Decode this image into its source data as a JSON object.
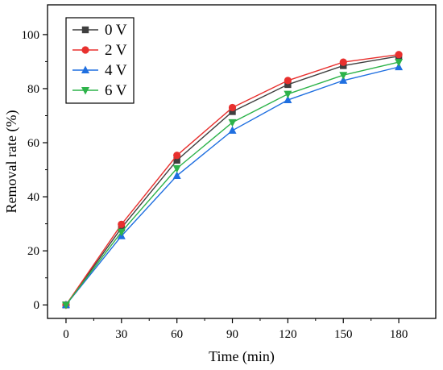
{
  "chart_data": {
    "type": "line",
    "title": "",
    "xlabel": "Time (min)",
    "ylabel": "Removal rate (%)",
    "x": [
      0,
      30,
      60,
      90,
      120,
      150,
      180
    ],
    "x_ticks": [
      "0",
      "30",
      "60",
      "90",
      "120",
      "150",
      "180"
    ],
    "y_ticks": [
      "0",
      "20",
      "40",
      "60",
      "80",
      "100"
    ],
    "xlim": [
      -10,
      200
    ],
    "ylim": [
      -5,
      111
    ],
    "grid": false,
    "legend_position": "top-left",
    "series": [
      {
        "name": "0 V",
        "color": "#3f3f3f",
        "marker": "square",
        "values": [
          0,
          28.5,
          53.5,
          71.5,
          81.5,
          88.5,
          92.0
        ]
      },
      {
        "name": "2 V",
        "color": "#e8302e",
        "marker": "circle",
        "values": [
          0,
          29.8,
          55.3,
          73.0,
          83.0,
          89.8,
          92.6
        ]
      },
      {
        "name": "4 V",
        "color": "#1f6fe0",
        "marker": "triangle-up",
        "values": [
          0,
          25.5,
          47.8,
          64.5,
          75.8,
          83.0,
          88.0
        ]
      },
      {
        "name": "6 V",
        "color": "#2db34a",
        "marker": "triangle-down",
        "values": [
          0,
          27.0,
          50.5,
          67.5,
          78.0,
          85.0,
          89.8
        ]
      }
    ]
  }
}
